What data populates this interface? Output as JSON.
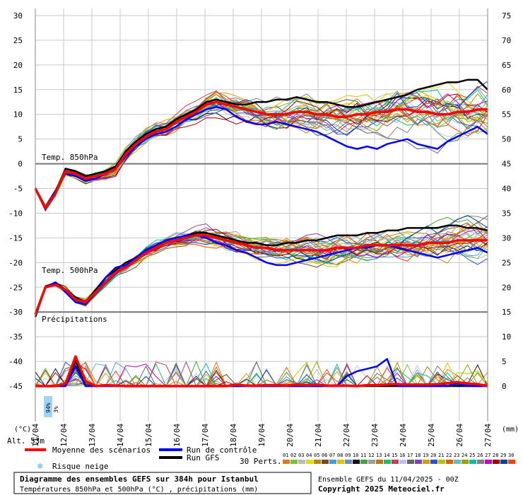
{
  "chart_data": {
    "type": "line",
    "title": "Diagramme des ensembles GEFS sur 384h pour Istanbul",
    "subtitle": "Températures 850hPa et 500hPa (°C) , précipitations (mm)",
    "run_info": "Ensemble GEFS du 11/04/2025 - 00Z",
    "copyright": "Copyright 2025 Meteociel.fr",
    "left_axis": {
      "ticks": [
        30,
        25,
        20,
        15,
        10,
        5,
        0,
        -5,
        -10,
        -15,
        -20,
        -25,
        -30,
        -35,
        -40,
        -45
      ],
      "unit": "(°C)",
      "ylim": [
        -45,
        30
      ]
    },
    "right_axis": {
      "ticks": [
        75,
        70,
        65,
        60,
        55,
        50,
        45,
        40,
        35,
        30,
        25,
        20,
        15,
        10,
        5,
        0
      ],
      "unit": "(mm)"
    },
    "x_labels": [
      "11/04",
      "12/04",
      "13/04",
      "14/04",
      "15/04",
      "16/04",
      "17/04",
      "18/04",
      "19/04",
      "20/04",
      "21/04",
      "22/04",
      "23/04",
      "24/04",
      "25/04",
      "26/04",
      "27/04"
    ],
    "panel_labels": {
      "t850": "Temp. 850hPa",
      "t500": "Temp. 500hPa",
      "precip": "Précipitations"
    },
    "altitude": "Alt. 53m",
    "snow_risk": [
      {
        "day": "11/04",
        "percent": "94%"
      },
      {
        "day": "11/04",
        "percent": "3%"
      }
    ],
    "legend": [
      {
        "label": "Moyenne des scénarios",
        "color": "#ff0000"
      },
      {
        "label": "Run de contrôle",
        "color": "#0000ff"
      },
      {
        "label": "Run GFS",
        "color": "#000000"
      },
      {
        "label": "Risque neige",
        "color": "#4aa8e0"
      }
    ],
    "perts": {
      "label": "30 Perts.",
      "ids": [
        "01",
        "02",
        "03",
        "04",
        "05",
        "06",
        "07",
        "08",
        "09",
        "10",
        "11",
        "12",
        "13",
        "14",
        "15",
        "16",
        "17",
        "18",
        "19",
        "20",
        "21",
        "22",
        "23",
        "24",
        "25",
        "26",
        "27",
        "28",
        "29",
        "30"
      ],
      "colors": [
        "#e07a1f",
        "#7fbf3f",
        "#bbbbbb",
        "#dede00",
        "#b8860b",
        "#7a4a1a",
        "#3fa0e0",
        "#e0c000",
        "#6a8fc0",
        "#111111",
        "#4aa040",
        "#9aa0a0",
        "#c07020",
        "#20c060",
        "#c04060",
        "#c0c0ff",
        "#666666",
        "#8040c0",
        "#d0a000",
        "#3050d0",
        "#c0c000",
        "#e06000",
        "#60c0c0",
        "#a0a000",
        "#00c0a0",
        "#808080",
        "#c000c0",
        "#a00000",
        "#0040a0",
        "#ff4000"
      ]
    },
    "series": [
      {
        "name": "Moyenne des scénarios",
        "panel": "t850",
        "color": "#ff0000",
        "values": [
          -5,
          -9,
          -6,
          -1.5,
          -2,
          -3,
          -2.5,
          -2,
          -1,
          2,
          4,
          5.5,
          6.5,
          7,
          8.5,
          9.5,
          10.5,
          12,
          12.5,
          12,
          11.5,
          11,
          10.5,
          10,
          10,
          10,
          10.5,
          10.5,
          10,
          10,
          9.5,
          9.5,
          10,
          10,
          10.5,
          10.5,
          11,
          11,
          10.5,
          10.5,
          10,
          10,
          10.5,
          10.5,
          11,
          11
        ]
      },
      {
        "name": "Run de contrôle",
        "panel": "t850",
        "color": "#0000ff",
        "values": [
          -5,
          -9,
          -5.5,
          -2,
          -2.5,
          -3.5,
          -3,
          -2,
          -1,
          1.5,
          3.5,
          5,
          6,
          6.5,
          7.5,
          9,
          10,
          11,
          11.5,
          11,
          9.5,
          8.5,
          8,
          8,
          8.5,
          8,
          7.5,
          7,
          6.5,
          5.5,
          4.5,
          3.5,
          3,
          3.5,
          3,
          4,
          4.5,
          5,
          4,
          3.5,
          3,
          4.5,
          5.5,
          6.5,
          7.5,
          6
        ]
      },
      {
        "name": "Run GFS",
        "panel": "t850",
        "color": "#000000",
        "values": [
          -5,
          -9,
          -6,
          -1,
          -1.5,
          -2.5,
          -2,
          -1.5,
          -0.5,
          2.5,
          4.5,
          6,
          7,
          7.5,
          9,
          10,
          11,
          12.5,
          13,
          12.5,
          12,
          12,
          12.5,
          12.5,
          13,
          13,
          13.5,
          13,
          12.5,
          12.5,
          12,
          11.5,
          11.5,
          12,
          12.5,
          13,
          13.5,
          14,
          15,
          15.5,
          16,
          16.5,
          16.5,
          17,
          17,
          15
        ]
      },
      {
        "name": "Moyenne des scénarios",
        "panel": "t500",
        "color": "#ff0000",
        "values": [
          -30.5,
          -25,
          -24.5,
          -25.5,
          -27.5,
          -28,
          -26,
          -24,
          -22,
          -21,
          -19.5,
          -18,
          -17,
          -16,
          -15.5,
          -15,
          -14.5,
          -14.5,
          -15,
          -15.5,
          -16,
          -16.5,
          -17,
          -17,
          -17.5,
          -17.5,
          -17.5,
          -17.5,
          -17.5,
          -17.5,
          -17,
          -17,
          -17,
          -16.5,
          -16.5,
          -16.5,
          -16.5,
          -16.5,
          -16.5,
          -16,
          -16,
          -16,
          -15.5,
          -15.5,
          -15.5,
          -15.5
        ]
      },
      {
        "name": "Run de contrôle",
        "panel": "t500",
        "color": "#0000ff",
        "values": [
          -30.5,
          -25,
          -24,
          -26,
          -28,
          -28.5,
          -26,
          -23,
          -21,
          -20.5,
          -19,
          -17.5,
          -16.5,
          -15.5,
          -15,
          -14.5,
          -14.5,
          -15,
          -16,
          -16.5,
          -17.5,
          -18,
          -19,
          -20,
          -20.5,
          -20.5,
          -20,
          -19.5,
          -19,
          -18.5,
          -18,
          -17.5,
          -17,
          -17,
          -16.5,
          -16.5,
          -17,
          -17.5,
          -18,
          -18.5,
          -19,
          -18.5,
          -18,
          -17.5,
          -17,
          -18
        ]
      },
      {
        "name": "Run GFS",
        "panel": "t500",
        "color": "#000000",
        "values": [
          -31,
          -25,
          -24,
          -25.5,
          -27,
          -28,
          -25.5,
          -23,
          -21.5,
          -20,
          -19,
          -17.5,
          -16.5,
          -15.5,
          -15,
          -14.5,
          -14,
          -14,
          -14.5,
          -15,
          -15.5,
          -16,
          -16,
          -16.5,
          -16.5,
          -16,
          -16,
          -15.5,
          -15.5,
          -15,
          -14.5,
          -14.5,
          -14.5,
          -14,
          -14,
          -13.5,
          -13.5,
          -13,
          -13,
          -13,
          -13,
          -12.5,
          -12.5,
          -13,
          -13,
          -13.5
        ]
      },
      {
        "name": "Moyenne des scénarios",
        "panel": "precip",
        "color": "#ff0000",
        "values": [
          0,
          0,
          0,
          0.5,
          6,
          1,
          0,
          0.2,
          0.1,
          0,
          0,
          0,
          0,
          0,
          0,
          0,
          0,
          0,
          0,
          0,
          0.3,
          0.1,
          0.1,
          0.2,
          0.2,
          0.1,
          0.3,
          0.2,
          0.3,
          0.1,
          0.1,
          0.1,
          0,
          0.2,
          0.2,
          0.3,
          0.4,
          0.3,
          0.3,
          0.3,
          0.4,
          0.6,
          0.8,
          0.5,
          0.4,
          0
        ]
      },
      {
        "name": "Run de contrôle",
        "panel": "precip",
        "color": "#0000ff",
        "values": [
          0,
          0,
          0,
          0,
          4,
          0,
          0,
          0,
          0,
          0,
          0,
          0,
          0,
          0,
          0,
          0,
          0,
          0,
          0,
          0,
          0,
          0,
          0,
          0,
          0,
          0,
          0,
          0,
          0,
          0,
          0,
          2,
          3,
          3.5,
          4,
          5.5,
          0,
          0,
          0,
          0,
          0,
          0,
          0.5,
          0,
          0,
          0
        ]
      },
      {
        "name": "Run GFS",
        "panel": "precip",
        "color": "#000000",
        "values": [
          0,
          0,
          0,
          0,
          5,
          0,
          0,
          0,
          0,
          0,
          0,
          0,
          0,
          0,
          0,
          0,
          0,
          0,
          0,
          0,
          0,
          0,
          0,
          0,
          0,
          0,
          0,
          0,
          0,
          0,
          0,
          0,
          0,
          0,
          0,
          0,
          0,
          0,
          0,
          0,
          0,
          0,
          0,
          0,
          0,
          0
        ]
      }
    ]
  }
}
